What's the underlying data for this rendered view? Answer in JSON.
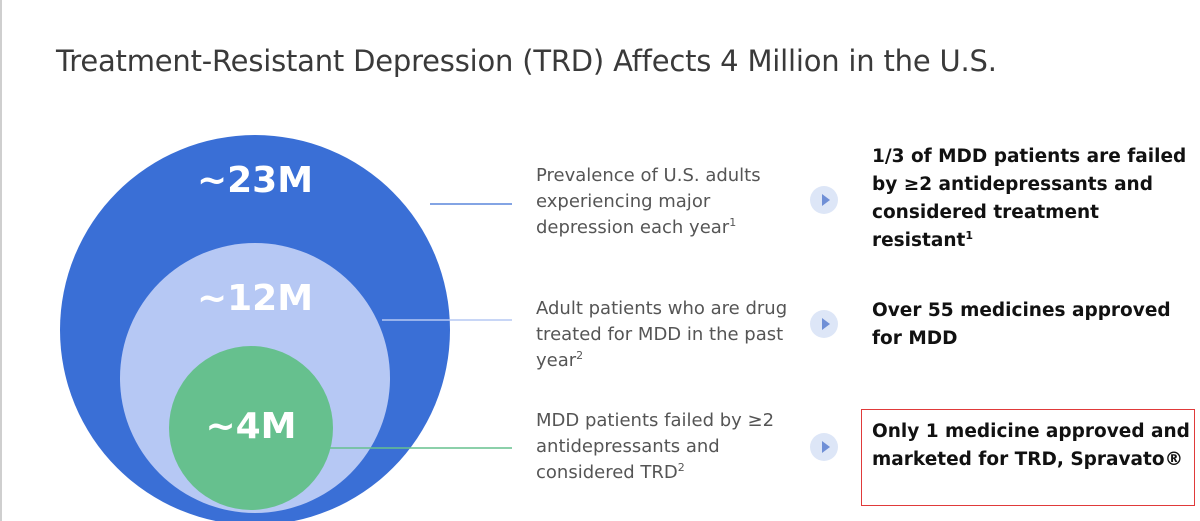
{
  "title": "Treatment-Resistant Depression (TRD) Affects 4 Million in the U.S.",
  "colors": {
    "outer_circle": "#3a6fd6",
    "middle_circle": "#b6c8f4",
    "inner_circle": "#66c08e",
    "highlight_border": "#e03a3a",
    "arrow_bg": "#dde6f7",
    "arrow_fg": "#6f8fd6"
  },
  "circles": [
    {
      "label": "~23M"
    },
    {
      "label": "~12M"
    },
    {
      "label": "~4M"
    }
  ],
  "rows": [
    {
      "description": "Prevalence of U.S. adults experiencing major depression each year",
      "desc_footnote": "1",
      "fact": "1/3 of MDD patients are failed by ≥2 antidepressants and considered treatment resistant",
      "fact_footnote": "1",
      "arrow_icon": "play-arrow-icon"
    },
    {
      "description": "Adult patients who are drug treated for MDD in the past year",
      "desc_footnote": "2",
      "fact": "Over 55 medicines approved for MDD",
      "fact_footnote": "",
      "arrow_icon": "play-arrow-icon"
    },
    {
      "description": "MDD patients failed by ≥2 antidepressants and considered TRD",
      "desc_footnote": "2",
      "fact": "Only 1 medicine approved and marketed for TRD, Spravato®",
      "fact_footnote": "",
      "arrow_icon": "play-arrow-icon",
      "highlighted": true
    }
  ]
}
